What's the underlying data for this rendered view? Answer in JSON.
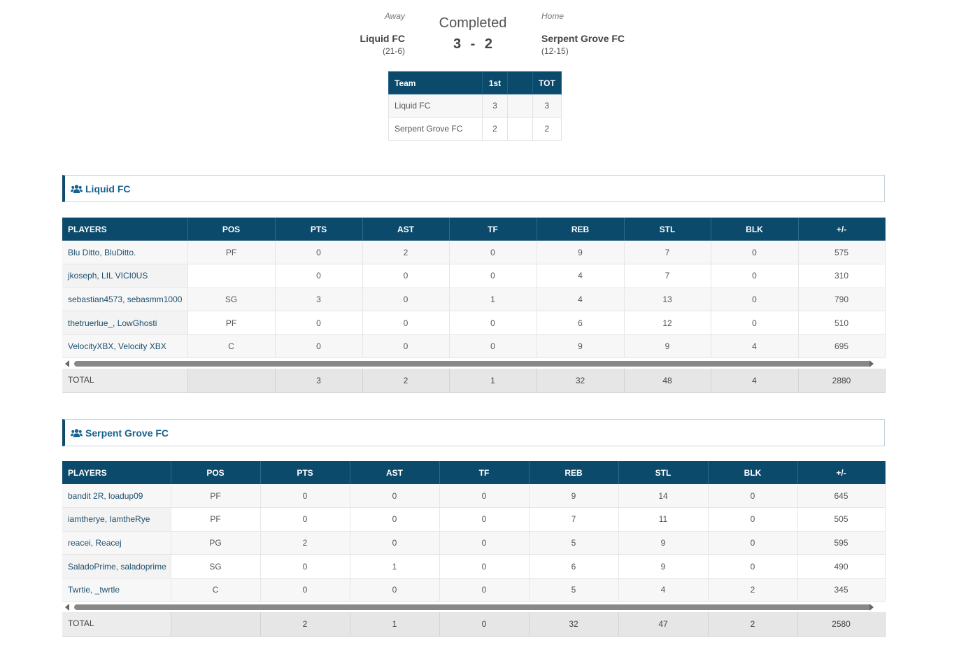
{
  "header": {
    "away_label": "Away",
    "home_label": "Home",
    "status": "Completed",
    "away": {
      "name": "Liquid FC",
      "record": "(21-6)",
      "score": "3"
    },
    "home": {
      "name": "Serpent Grove FC",
      "record": "(12-15)",
      "score": "2"
    },
    "score_separator": "-"
  },
  "period_table": {
    "headers": [
      "Team",
      "1st",
      "",
      "TOT"
    ],
    "rows": [
      {
        "team": "Liquid FC",
        "q1": "3",
        "blank": "",
        "tot": "3"
      },
      {
        "team": "Serpent Grove FC",
        "q1": "2",
        "blank": "",
        "tot": "2"
      }
    ]
  },
  "box_headers": [
    "PLAYERS",
    "POS",
    "PTS",
    "AST",
    "TF",
    "REB",
    "STL",
    "BLK",
    "+/-"
  ],
  "teams": [
    {
      "name": "Liquid FC",
      "icon": "users-icon",
      "players": [
        {
          "name": "Blu Ditto, BluDitto.",
          "pos": "PF",
          "pts": "0",
          "ast": "2",
          "tf": "0",
          "reb": "9",
          "stl": "7",
          "blk": "0",
          "pm": "575"
        },
        {
          "name": "jkoseph, LIL VICI0US",
          "pos": "",
          "pts": "0",
          "ast": "0",
          "tf": "0",
          "reb": "4",
          "stl": "7",
          "blk": "0",
          "pm": "310"
        },
        {
          "name": "sebastian4573, sebasmm1000",
          "pos": "SG",
          "pts": "3",
          "ast": "0",
          "tf": "1",
          "reb": "4",
          "stl": "13",
          "blk": "0",
          "pm": "790"
        },
        {
          "name": "thetruerlue_, LowGhosti",
          "pos": "PF",
          "pts": "0",
          "ast": "0",
          "tf": "0",
          "reb": "6",
          "stl": "12",
          "blk": "0",
          "pm": "510"
        },
        {
          "name": "VelocityXBX, Velocity XBX",
          "pos": "C",
          "pts": "0",
          "ast": "0",
          "tf": "0",
          "reb": "9",
          "stl": "9",
          "blk": "4",
          "pm": "695"
        }
      ],
      "total": {
        "label": "TOTAL",
        "pos": "",
        "pts": "3",
        "ast": "2",
        "tf": "1",
        "reb": "32",
        "stl": "48",
        "blk": "4",
        "pm": "2880"
      }
    },
    {
      "name": "Serpent Grove FC",
      "icon": "users-icon",
      "players": [
        {
          "name": "bandit 2R, loadup09",
          "pos": "PF",
          "pts": "0",
          "ast": "0",
          "tf": "0",
          "reb": "9",
          "stl": "14",
          "blk": "0",
          "pm": "645"
        },
        {
          "name": "iamtherye, IamtheRye",
          "pos": "PF",
          "pts": "0",
          "ast": "0",
          "tf": "0",
          "reb": "7",
          "stl": "11",
          "blk": "0",
          "pm": "505"
        },
        {
          "name": "reacei, Reacej",
          "pos": "PG",
          "pts": "2",
          "ast": "0",
          "tf": "0",
          "reb": "5",
          "stl": "9",
          "blk": "0",
          "pm": "595"
        },
        {
          "name": "SaladoPrime, saladoprime",
          "pos": "SG",
          "pts": "0",
          "ast": "1",
          "tf": "0",
          "reb": "6",
          "stl": "9",
          "blk": "0",
          "pm": "490"
        },
        {
          "name": "Twrtie, _twrtle",
          "pos": "C",
          "pts": "0",
          "ast": "0",
          "tf": "0",
          "reb": "5",
          "stl": "4",
          "blk": "2",
          "pm": "345"
        }
      ],
      "total": {
        "label": "TOTAL",
        "pos": "",
        "pts": "2",
        "ast": "1",
        "tf": "0",
        "reb": "32",
        "stl": "47",
        "blk": "2",
        "pm": "2580"
      }
    }
  ],
  "colors": {
    "header_bg": "#0b4a6b",
    "link": "#1c4f6e",
    "team_title": "#17628f"
  }
}
